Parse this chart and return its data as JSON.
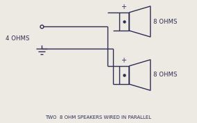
{
  "bg_color": "#ede9e3",
  "line_color": "#2d2d52",
  "text_color": "#2d2d52",
  "label_4ohms": "4 OHMS",
  "label_8ohms_top": "8 OHMS",
  "label_8ohms_bot": "8 OHMS",
  "caption": "TWO  8 OHM SPEAKERS WIRED IN PARALLEL",
  "caption_fontsize": 5.0,
  "label_fontsize": 6.2,
  "figw": 2.84,
  "figh": 1.77,
  "dpi": 100
}
